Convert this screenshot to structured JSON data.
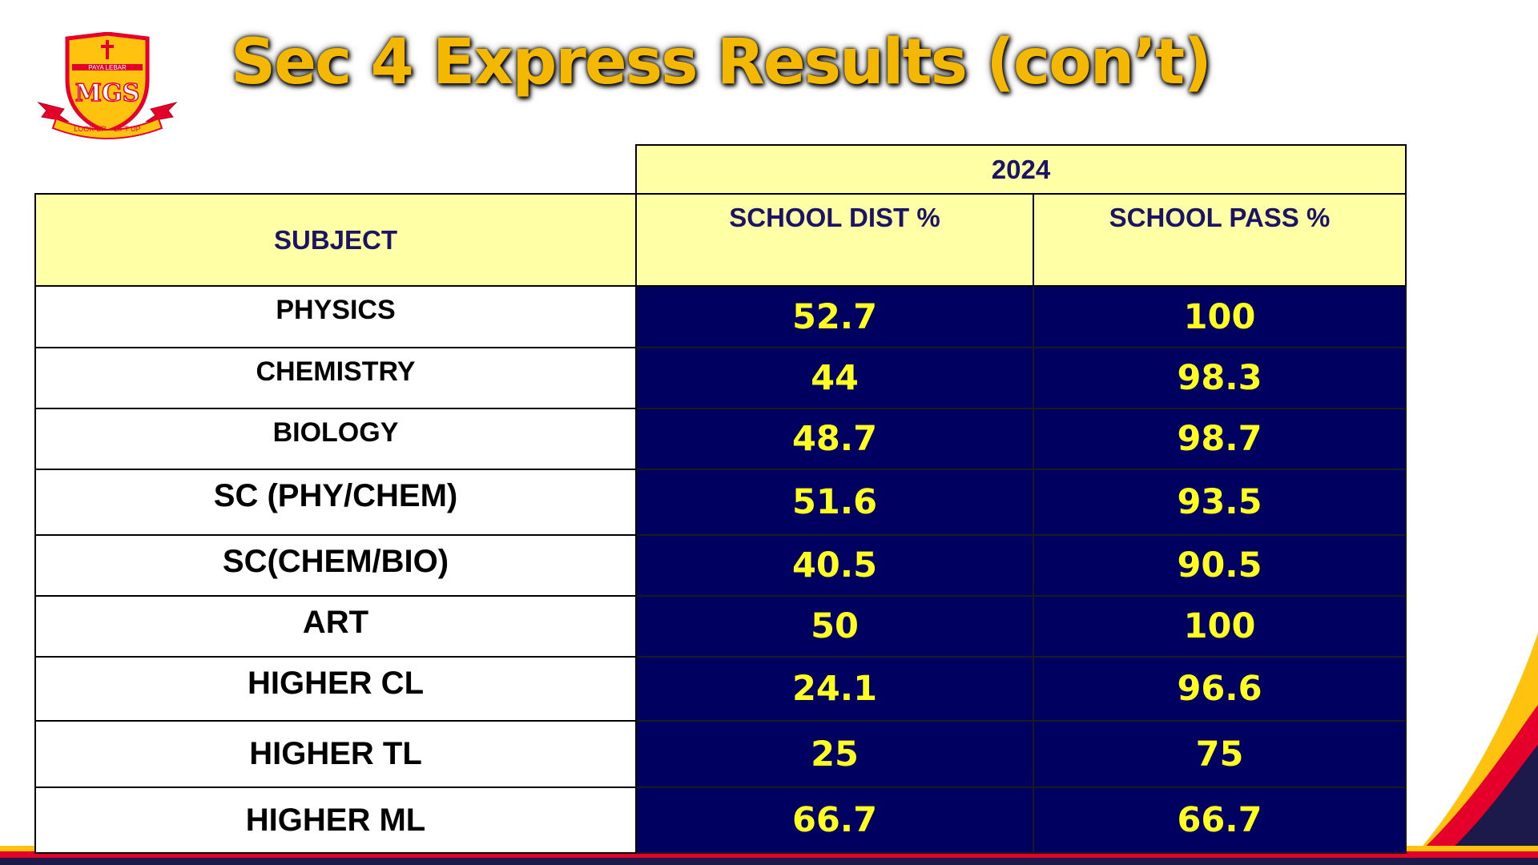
{
  "slide": {
    "title": "Sec 4 Express Results (con’t)",
    "logo": {
      "top_text": "PAYA LEBAR",
      "initials": "MGS",
      "motto": "LOOK UP – LIFT UP"
    }
  },
  "table": {
    "year_header": "2024",
    "columns": {
      "subject": "SUBJECT",
      "dist": "SCHOOL DIST %",
      "pass": "SCHOOL PASS %"
    },
    "rows": [
      {
        "subject": "PHYSICS",
        "dist": "52.7",
        "pass": "100"
      },
      {
        "subject": "CHEMISTRY",
        "dist": "44",
        "pass": "98.3"
      },
      {
        "subject": "BIOLOGY",
        "dist": "48.7",
        "pass": "98.7"
      },
      {
        "subject": "SC (PHY/CHEM)",
        "dist": "51.6",
        "pass": "93.5"
      },
      {
        "subject": "SC(CHEM/BIO)",
        "dist": "40.5",
        "pass": "90.5"
      },
      {
        "subject": "ART",
        "dist": "50",
        "pass": "100"
      },
      {
        "subject": "HIGHER CL",
        "dist": "24.1",
        "pass": "96.6"
      },
      {
        "subject": "HIGHER TL",
        "dist": "25",
        "pass": "75"
      },
      {
        "subject": "HIGHER ML",
        "dist": "66.7",
        "pass": "66.7"
      }
    ]
  },
  "colors": {
    "title_text": "#F5B800",
    "header_fill": "#FFFFA6",
    "header_text": "#1B1464",
    "value_fill": "#000060",
    "value_text": "#FFFF22",
    "accent_red": "#E4002B",
    "accent_yellow": "#FFC20E",
    "accent_navy": "#1B1A4A"
  }
}
